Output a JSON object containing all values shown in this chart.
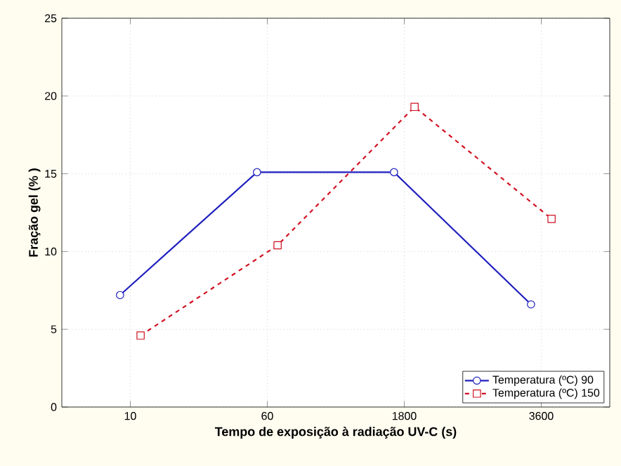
{
  "chart_data": {
    "type": "line",
    "xlabel": "Tempo de exposição à radiação UV-C (s)",
    "ylabel": "Fração gel (% )",
    "categories": [
      "10",
      "60",
      "1800",
      "3600"
    ],
    "ylim": [
      0,
      25
    ],
    "yticks": [
      0,
      5,
      10,
      15,
      20,
      25
    ],
    "grid": true,
    "legend": "bottom right",
    "series": [
      {
        "name": "Temperatura (ºC) 90",
        "color": "#1f1fbf",
        "values": [
          7.2,
          15.1,
          15.1,
          6.6
        ],
        "marker": "circle",
        "line_style": "solid"
      },
      {
        "name": "Temperatura (ºC) 150",
        "color": "#d01020",
        "values": [
          4.6,
          10.4,
          19.3,
          12.1
        ],
        "marker": "square",
        "line_style": "dashed"
      }
    ]
  }
}
